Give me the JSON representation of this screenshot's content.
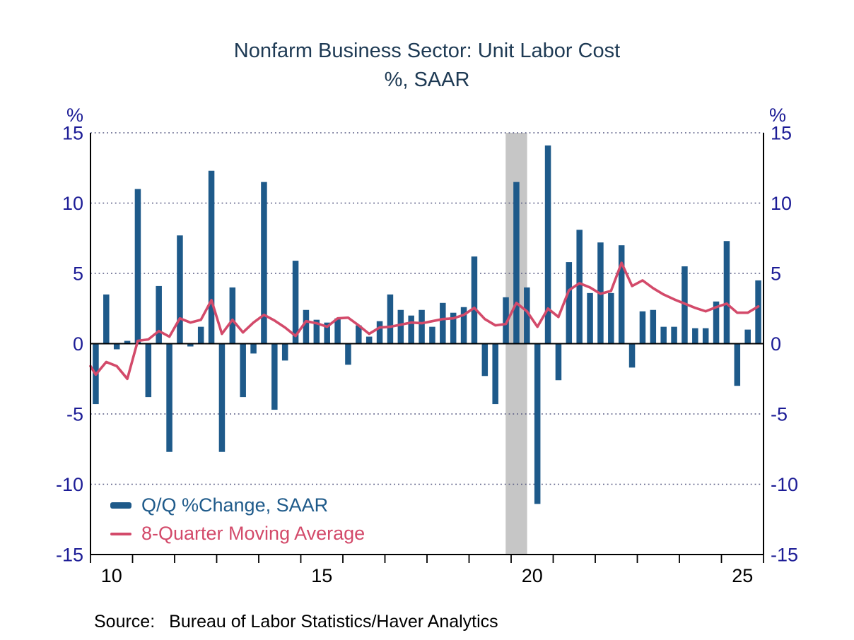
{
  "title": {
    "line1": "Nonfarm Business Sector: Unit Labor Cost",
    "line2": "%, SAAR"
  },
  "y_axis": {
    "unit_label": "%",
    "ticks": [
      15,
      10,
      5,
      0,
      -5,
      -10,
      -15
    ],
    "gridline_ticks": [
      15,
      10,
      5,
      -5,
      -10
    ],
    "min": -15,
    "max": 15
  },
  "x_axis": {
    "start_year": 2010,
    "end_year": 2026,
    "tick_interval_years": 1,
    "labeled_years": [
      2010,
      2015,
      2020,
      2025
    ],
    "labels": [
      "10",
      "15",
      "20",
      "25"
    ]
  },
  "legend": {
    "items": [
      {
        "label": "Q/Q %Change, SAAR",
        "marker": "thick-dash",
        "color": "#1e5a8a"
      },
      {
        "label": "8-Quarter Moving Average",
        "marker": "thin-dash",
        "color": "#d34a6a"
      }
    ]
  },
  "source": {
    "label": "Source:",
    "text": "Bureau of Labor Statistics/Haver Analytics"
  },
  "colors": {
    "bar": "#1e5a8a",
    "line": "#d34a6a",
    "title": "#1e3a54",
    "axis_label": "#1c1c96",
    "x_label": "#000000",
    "grid": "#50547e",
    "recession_band": "#c6c6c6",
    "axis_line": "#000000"
  },
  "recession_band": {
    "x_start": 2019.87,
    "x_end": 2020.38
  },
  "chart_data": {
    "type": "bar",
    "title": "Nonfarm Business Sector: Unit Labor Cost",
    "subtitle": "%, SAAR",
    "ylabel": "%",
    "ylim": [
      -15,
      15
    ],
    "grid": "dotted horizontal gridlines at +15, +10, +5, -5, -10; solid zero line",
    "legend_position": "bottom-left inside plot",
    "frequency": "quarterly",
    "quarters_span": "2010Q1 through 2025Q4",
    "recession_band_years": [
      2019.87,
      2020.38
    ],
    "series": [
      {
        "name": "Q/Q %Change, SAAR",
        "type": "bar",
        "color": "#1e5a8a",
        "x_start": 2010.125,
        "x_step": 0.25,
        "values": [
          -4.3,
          3.5,
          -0.4,
          0.2,
          11.0,
          -3.8,
          4.1,
          -7.7,
          7.7,
          -0.2,
          1.2,
          12.3,
          -7.7,
          4.0,
          -3.8,
          -0.7,
          11.5,
          -4.7,
          -1.2,
          5.9,
          2.4,
          1.7,
          1.5,
          1.8,
          -1.5,
          1.3,
          0.5,
          1.6,
          3.5,
          2.4,
          2.0,
          2.4,
          1.2,
          2.9,
          2.2,
          2.6,
          6.2,
          -2.3,
          -4.3,
          3.3,
          11.5,
          4.0,
          -11.4,
          14.1,
          -2.6,
          5.8,
          8.1,
          3.6,
          7.2,
          3.6,
          7.0,
          -1.7,
          2.3,
          2.4,
          1.2,
          1.2,
          5.5,
          1.1,
          1.1,
          3.0,
          7.3,
          -3.0,
          1.0,
          4.5
        ]
      },
      {
        "name": "8-Quarter Moving Average",
        "type": "line",
        "color": "#d34a6a",
        "x_first": 2010.0,
        "x_centers_start": 2010.125,
        "x_step": 0.25,
        "values": [
          -1.6,
          -2.2,
          -1.3,
          -1.6,
          -2.5,
          0.2,
          0.3,
          0.9,
          0.5,
          1.8,
          1.5,
          1.7,
          3.1,
          0.7,
          1.7,
          0.8,
          1.5,
          2.05,
          1.65,
          1.15,
          0.55,
          1.6,
          1.45,
          1.2,
          1.8,
          1.85,
          1.3,
          0.7,
          1.15,
          1.2,
          1.35,
          1.5,
          1.45,
          1.6,
          1.75,
          1.8,
          2.05,
          2.55,
          1.75,
          1.3,
          1.4,
          2.9,
          2.3,
          1.2,
          2.5,
          1.9,
          3.8,
          4.3,
          4.0,
          3.55,
          3.75,
          5.75,
          4.1,
          4.5,
          3.95,
          3.5,
          3.15,
          2.85,
          2.55,
          2.3,
          2.6,
          2.85,
          2.2,
          2.2,
          2.65
        ]
      }
    ]
  }
}
